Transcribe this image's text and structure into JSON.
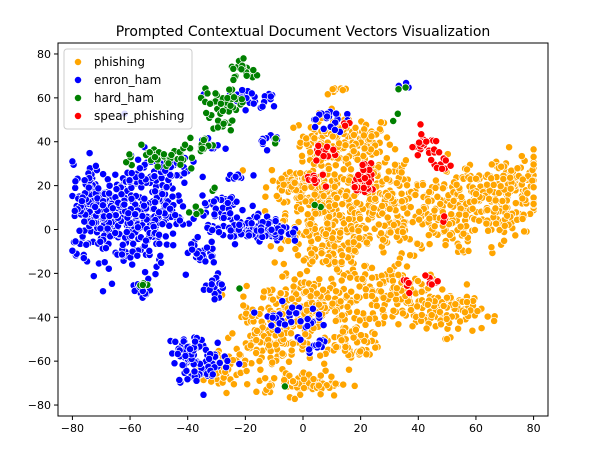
{
  "chart_data": {
    "type": "scatter",
    "title": "Prompted Contextual Document Vectors Visualization",
    "xlabel": "",
    "ylabel": "",
    "xlim": [
      -85,
      85
    ],
    "ylim": [
      -85,
      85
    ],
    "xticks": [
      -80,
      -60,
      -40,
      -20,
      0,
      20,
      40,
      60,
      80
    ],
    "yticks": [
      -80,
      -60,
      -40,
      -20,
      0,
      20,
      40,
      60,
      80
    ],
    "grid": false,
    "legend_position": "top-left",
    "series": [
      {
        "name": "phishing",
        "color": "#ffa500",
        "clusters": [
          {
            "cx": 5,
            "cy": 40,
            "sx": 3,
            "sy": 4,
            "n": 25
          },
          {
            "cx": 15,
            "cy": 40,
            "sx": 8,
            "sy": 6,
            "n": 120
          },
          {
            "cx": 0,
            "cy": 20,
            "sx": 6,
            "sy": 6,
            "n": 70
          },
          {
            "cx": 10,
            "cy": 5,
            "sx": 8,
            "sy": 14,
            "n": 280
          },
          {
            "cx": 30,
            "cy": 10,
            "sx": 10,
            "sy": 12,
            "n": 240
          },
          {
            "cx": 50,
            "cy": 5,
            "sx": 5,
            "sy": 8,
            "n": 90
          },
          {
            "cx": 62,
            "cy": 18,
            "sx": 6,
            "sy": 6,
            "n": 70
          },
          {
            "cx": 75,
            "cy": 20,
            "sx": 5,
            "sy": 8,
            "n": 90
          },
          {
            "cx": 68,
            "cy": 5,
            "sx": 5,
            "sy": 5,
            "n": 50
          },
          {
            "cx": 35,
            "cy": -30,
            "sx": 8,
            "sy": 6,
            "n": 110
          },
          {
            "cx": 50,
            "cy": -38,
            "sx": 6,
            "sy": 5,
            "n": 90
          },
          {
            "cx": 5,
            "cy": -35,
            "sx": 10,
            "sy": 8,
            "n": 170
          },
          {
            "cx": -10,
            "cy": -40,
            "sx": 6,
            "sy": 8,
            "n": 70
          },
          {
            "cx": -15,
            "cy": -55,
            "sx": 8,
            "sy": 6,
            "n": 80
          },
          {
            "cx": -30,
            "cy": -65,
            "sx": 4,
            "sy": 4,
            "n": 40
          },
          {
            "cx": 0,
            "cy": -70,
            "sx": 8,
            "sy": 3,
            "n": 70
          },
          {
            "cx": 18,
            "cy": -52,
            "sx": 4,
            "sy": 5,
            "n": 45
          },
          {
            "cx": -5,
            "cy": 20,
            "sx": 3,
            "sy": 3,
            "n": 15
          },
          {
            "cx": 12,
            "cy": 65,
            "sx": 3,
            "sy": 2,
            "n": 8
          }
        ]
      },
      {
        "name": "enron_ham",
        "color": "#0000ff",
        "clusters": [
          {
            "cx": -72,
            "cy": 10,
            "sx": 4,
            "sy": 10,
            "n": 140
          },
          {
            "cx": -62,
            "cy": 5,
            "sx": 7,
            "sy": 11,
            "n": 180
          },
          {
            "cx": -52,
            "cy": 10,
            "sx": 5,
            "sy": 12,
            "n": 130
          },
          {
            "cx": -48,
            "cy": 28,
            "sx": 4,
            "sy": 4,
            "n": 40
          },
          {
            "cx": -28,
            "cy": 10,
            "sx": 4,
            "sy": 4,
            "n": 45
          },
          {
            "cx": -20,
            "cy": 0,
            "sx": 7,
            "sy": 3,
            "n": 80
          },
          {
            "cx": -10,
            "cy": 0,
            "sx": 3,
            "sy": 3,
            "n": 30
          },
          {
            "cx": -36,
            "cy": -10,
            "sx": 3,
            "sy": 3,
            "n": 25
          },
          {
            "cx": -30,
            "cy": -26,
            "sx": 2,
            "sy": 3,
            "n": 15
          },
          {
            "cx": -55,
            "cy": -27,
            "sx": 2,
            "sy": 2,
            "n": 12
          },
          {
            "cx": -35,
            "cy": -60,
            "sx": 5,
            "sy": 5,
            "n": 70
          },
          {
            "cx": -40,
            "cy": -55,
            "sx": 3,
            "sy": 3,
            "n": 25
          },
          {
            "cx": -5,
            "cy": -40,
            "sx": 5,
            "sy": 3,
            "n": 35
          },
          {
            "cx": 5,
            "cy": -52,
            "sx": 2,
            "sy": 2,
            "n": 12
          },
          {
            "cx": 8,
            "cy": 50,
            "sx": 3,
            "sy": 3,
            "n": 20
          },
          {
            "cx": -12,
            "cy": 40,
            "sx": 2,
            "sy": 2,
            "n": 10
          },
          {
            "cx": -20,
            "cy": 60,
            "sx": 6,
            "sy": 3,
            "n": 30
          },
          {
            "cx": -32,
            "cy": 38,
            "sx": 2,
            "sy": 2,
            "n": 8
          },
          {
            "cx": -22,
            "cy": 25,
            "sx": 2,
            "sy": 2,
            "n": 8
          },
          {
            "cx": 35,
            "cy": 65,
            "sx": 1,
            "sy": 1,
            "n": 3
          }
        ]
      },
      {
        "name": "hard_ham",
        "color": "#008000",
        "clusters": [
          {
            "cx": -20,
            "cy": 72,
            "sx": 3,
            "sy": 3,
            "n": 20
          },
          {
            "cx": -28,
            "cy": 58,
            "sx": 4,
            "sy": 3,
            "n": 40
          },
          {
            "cx": -48,
            "cy": 32,
            "sx": 4,
            "sy": 3,
            "n": 35
          },
          {
            "cx": -36,
            "cy": 38,
            "sx": 3,
            "sy": 2,
            "n": 15
          },
          {
            "cx": -28,
            "cy": 48,
            "sx": 2,
            "sy": 2,
            "n": 8
          },
          {
            "cx": -60,
            "cy": 33,
            "sx": 1,
            "sy": 1,
            "n": 3
          },
          {
            "cx": -55,
            "cy": -25,
            "sx": 1,
            "sy": 1,
            "n": 4
          },
          {
            "cx": -38,
            "cy": 8,
            "sx": 2,
            "sy": 2,
            "n": 4
          },
          {
            "cx": -30,
            "cy": 20,
            "sx": 1,
            "sy": 1,
            "n": 2
          },
          {
            "cx": -22,
            "cy": -27,
            "sx": 1,
            "sy": 1,
            "n": 2
          },
          {
            "cx": -10,
            "cy": 42,
            "sx": 1,
            "sy": 1,
            "n": 2
          },
          {
            "cx": 5,
            "cy": 10,
            "sx": 1,
            "sy": 1,
            "n": 2
          },
          {
            "cx": 32,
            "cy": 52,
            "sx": 1,
            "sy": 1,
            "n": 2
          },
          {
            "cx": -5,
            "cy": -70,
            "sx": 1,
            "sy": 1,
            "n": 1
          },
          {
            "cx": 35,
            "cy": 65,
            "sx": 1,
            "sy": 1,
            "n": 2
          }
        ]
      },
      {
        "name": "spear_phishing",
        "color": "#ff0000",
        "clusters": [
          {
            "cx": 22,
            "cy": 22,
            "sx": 2,
            "sy": 3,
            "n": 40
          },
          {
            "cx": 8,
            "cy": 35,
            "sx": 2,
            "sy": 2,
            "n": 12
          },
          {
            "cx": 5,
            "cy": 22,
            "sx": 2,
            "sy": 2,
            "n": 10
          },
          {
            "cx": 42,
            "cy": 38,
            "sx": 3,
            "sy": 3,
            "n": 20
          },
          {
            "cx": 48,
            "cy": 30,
            "sx": 2,
            "sy": 2,
            "n": 10
          },
          {
            "cx": 35,
            "cy": -25,
            "sx": 2,
            "sy": 2,
            "n": 6
          },
          {
            "cx": 45,
            "cy": -25,
            "sx": 2,
            "sy": 2,
            "n": 8
          },
          {
            "cx": 48,
            "cy": 5,
            "sx": 1,
            "sy": 1,
            "n": 3
          },
          {
            "cx": 15,
            "cy": 48,
            "sx": 1,
            "sy": 1,
            "n": 3
          }
        ]
      }
    ]
  }
}
